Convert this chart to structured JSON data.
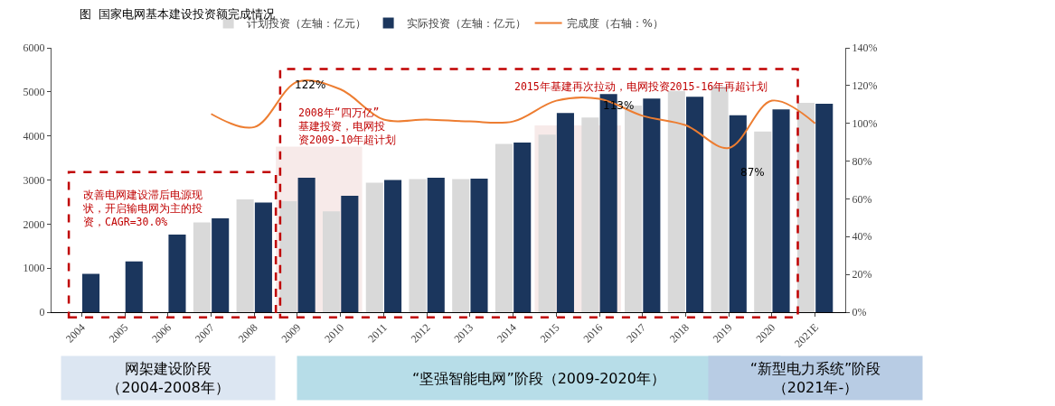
{
  "chart_data": {
    "type": "bar",
    "title": "图  国家电网基本建设投资额完成情况",
    "categories": [
      "2004",
      "2005",
      "2006",
      "2007",
      "2008",
      "2009",
      "2010",
      "2011",
      "2012",
      "2013",
      "2014",
      "2015",
      "2016",
      "2017",
      "2018",
      "2019",
      "2020",
      "2021E"
    ],
    "series": [
      {
        "name": "计划投资（左轴：亿元）",
        "color": "#d9d9d9",
        "values": [
          null,
          null,
          null,
          2040,
          2560,
          2520,
          2290,
          2940,
          3020,
          3020,
          3820,
          4030,
          4420,
          4690,
          5020,
          5120,
          4100,
          4750
        ]
      },
      {
        "name": "实际投资（左轴：亿元）",
        "color": "#1b365d",
        "values": [
          870,
          1150,
          1760,
          2130,
          2490,
          3050,
          2640,
          3000,
          3050,
          3030,
          3850,
          4520,
          4950,
          4850,
          4890,
          4470,
          4600,
          4730
        ]
      },
      {
        "name": "完成度（右轴：%）",
        "type": "line",
        "axis": "y2",
        "color": "#ed7d31",
        "values": [
          null,
          null,
          null,
          105,
          98,
          122,
          118,
          102,
          102,
          101,
          101,
          112,
          113,
          104,
          99,
          87,
          112,
          100
        ]
      }
    ],
    "ylim": [
      0,
      6000
    ],
    "yticks": [
      0,
      1000,
      2000,
      3000,
      4000,
      5000,
      6000
    ],
    "y2lim": [
      0,
      140
    ],
    "y2ticks": [
      {
        "value": 0,
        "label": "0%"
      },
      {
        "value": 20,
        "label": "20%"
      },
      {
        "value": 40,
        "label": "40%"
      },
      {
        "value": 60,
        "label": "60%"
      },
      {
        "value": 80,
        "label": "80%"
      },
      {
        "value": 100,
        "label": "100%"
      },
      {
        "value": 120,
        "label": "120%"
      },
      {
        "value": 140,
        "label": "140%"
      }
    ],
    "bands": [
      {
        "axis": "x",
        "from": "2009",
        "to": "2010",
        "color": "#f2dcdb"
      },
      {
        "axis": "x",
        "from": "2015",
        "to": "2016",
        "color": "#f2dcdb"
      }
    ],
    "annotations": [
      "改善电网建设滞后电源现状，开启输电网为主的投资，CAGR=30.0%",
      "2008年“四万亿”基建投资，电网投资2009-10年超计划",
      "2015年基建再次拉动，电网投资2015-16年再超计划",
      "网架建设阶段（2004-2008年）",
      "“坚强智能电网”阶段（2009-2020年）",
      "“新型电力系统”阶段（2021年-）",
      "122%",
      "113%",
      "87%"
    ],
    "legend": "top",
    "grid": false
  }
}
